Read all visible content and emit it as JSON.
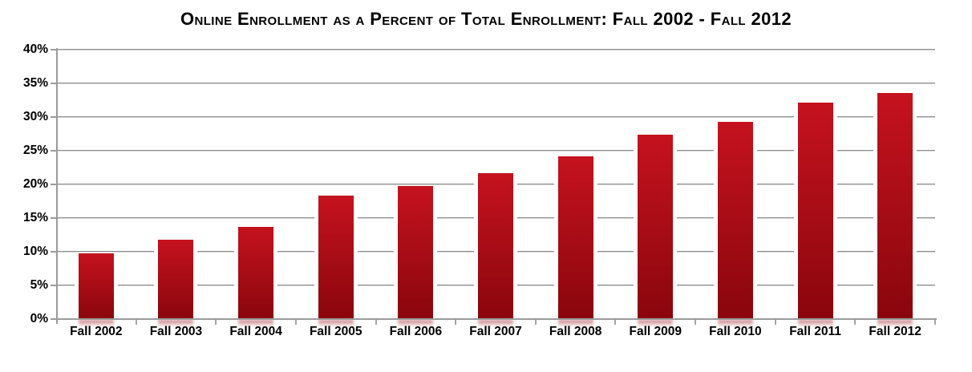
{
  "chart_data": {
    "type": "bar",
    "title": "Online Enrollment as a Percent of Total Enrollment: Fall 2002 - Fall 2012",
    "categories": [
      "Fall 2002",
      "Fall 2003",
      "Fall 2004",
      "Fall 2005",
      "Fall 2006",
      "Fall 2007",
      "Fall 2008",
      "Fall 2009",
      "Fall 2010",
      "Fall 2011",
      "Fall 2012"
    ],
    "values": [
      9.6,
      11.7,
      13.6,
      18.2,
      19.6,
      21.6,
      24.1,
      27.3,
      29.2,
      32.0,
      33.5
    ],
    "xlabel": "",
    "ylabel": "",
    "ylim": [
      0,
      40
    ],
    "ytick_step": 5,
    "ytick_labels": [
      "0%",
      "5%",
      "10%",
      "15%",
      "20%",
      "25%",
      "30%",
      "35%",
      "40%"
    ],
    "grid": "horizontal-only",
    "legend": "none",
    "colors": {
      "bar_gradient_top": "#c5121f",
      "bar_gradient_mid": "#a50c15",
      "bar_gradient_bottom": "#8a050c",
      "reflection": "#9b0f16",
      "gridline": "#8f8f8f",
      "axis": "#9b9b9b",
      "text": "#000000",
      "background": "#ffffff"
    }
  }
}
